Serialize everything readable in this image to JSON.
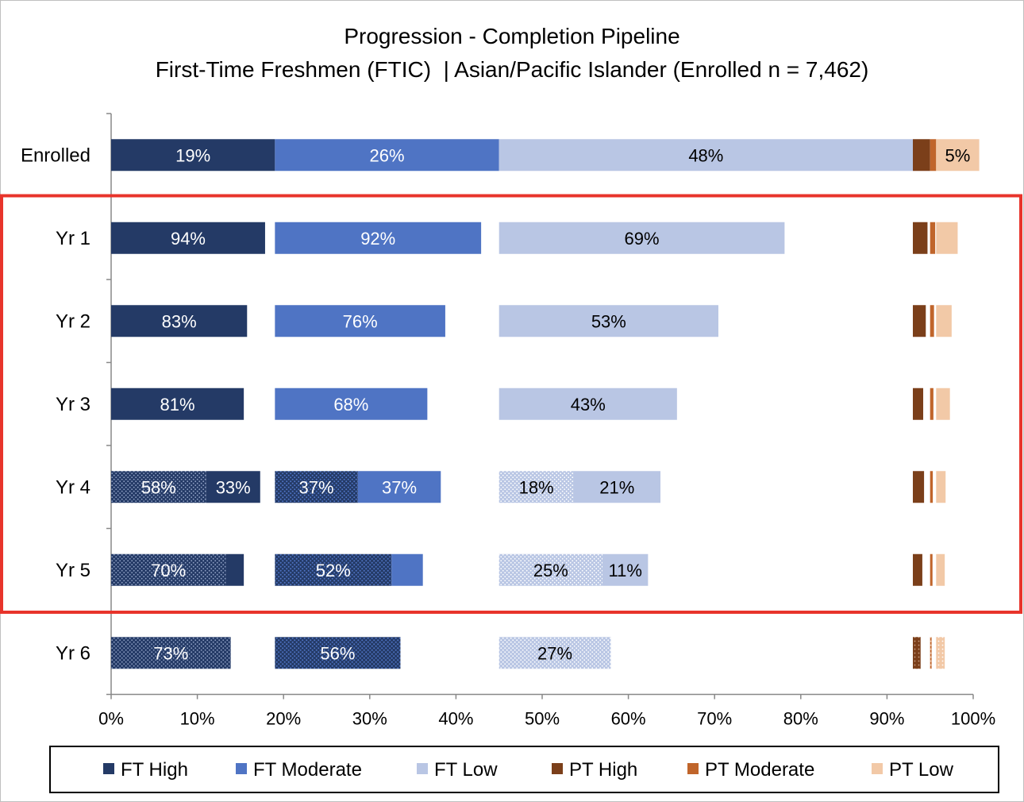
{
  "chart_data": {
    "type": "bar",
    "orientation": "horizontal",
    "stacking": "grouped-stacked",
    "title": "Progression - Completion Pipeline",
    "subtitle": "First-Time Freshmen (FTIC)  | Asian/Pacific Islander (Enrolled n = 7,462)",
    "categories": [
      "Enrolled",
      "Yr 1",
      "Yr 2",
      "Yr 3",
      "Yr 4",
      "Yr 5",
      "Yr 6"
    ],
    "xlim": [
      0,
      100
    ],
    "x_ticks": [
      "0%",
      "10%",
      "20%",
      "30%",
      "40%",
      "50%",
      "60%",
      "70%",
      "80%",
      "90%",
      "100%"
    ],
    "legend_position": "bottom",
    "highlight_box": {
      "color": "#e8342b",
      "categories": [
        "Yr 1",
        "Yr 2",
        "Yr 3",
        "Yr 4",
        "Yr 5"
      ]
    },
    "series": [
      {
        "name": "FT High",
        "color": "#243a66",
        "share_of_enrolled": 19
      },
      {
        "name": "FT Moderate",
        "color": "#4f74c4",
        "share_of_enrolled": 26
      },
      {
        "name": "FT Low",
        "color": "#b9c6e4",
        "share_of_enrolled": 48
      },
      {
        "name": "PT High",
        "color": "#7b3f1a",
        "share_of_enrolled": 2
      },
      {
        "name": "PT Moderate",
        "color": "#c0652b",
        "share_of_enrolled": 0.7
      },
      {
        "name": "PT Low",
        "color": "#f2c9a7",
        "share_of_enrolled": 5
      }
    ],
    "enrolled_labels": [
      "19%",
      "26%",
      "48%",
      "",
      "",
      "5%"
    ],
    "progress": [
      {
        "category": "Yr 1",
        "groups": [
          {
            "series": "FT High",
            "completed": 0,
            "retained": 94,
            "completed_label": "",
            "retained_label": "94%"
          },
          {
            "series": "FT Moderate",
            "completed": 0,
            "retained": 92,
            "completed_label": "",
            "retained_label": "92%"
          },
          {
            "series": "FT Low",
            "completed": 0,
            "retained": 69,
            "completed_label": "",
            "retained_label": "69%"
          },
          {
            "series": "PT High",
            "completed": 0,
            "retained": 85
          },
          {
            "series": "PT Moderate",
            "completed": 0,
            "retained": 85
          },
          {
            "series": "PT Low",
            "completed": 0,
            "retained": 50
          }
        ]
      },
      {
        "category": "Yr 2",
        "groups": [
          {
            "series": "FT High",
            "completed": 0,
            "retained": 83,
            "completed_label": "",
            "retained_label": "83%"
          },
          {
            "series": "FT Moderate",
            "completed": 0,
            "retained": 76,
            "completed_label": "",
            "retained_label": "76%"
          },
          {
            "series": "FT Low",
            "completed": 0,
            "retained": 53,
            "completed_label": "",
            "retained_label": "53%"
          },
          {
            "series": "PT High",
            "completed": 0,
            "retained": 75
          },
          {
            "series": "PT Moderate",
            "completed": 0,
            "retained": 65
          },
          {
            "series": "PT Low",
            "completed": 0,
            "retained": 36
          }
        ]
      },
      {
        "category": "Yr 3",
        "groups": [
          {
            "series": "FT High",
            "completed": 0,
            "retained": 81,
            "completed_label": "",
            "retained_label": "81%"
          },
          {
            "series": "FT Moderate",
            "completed": 0,
            "retained": 68,
            "completed_label": "",
            "retained_label": "68%"
          },
          {
            "series": "FT Low",
            "completed": 0,
            "retained": 43,
            "completed_label": "",
            "retained_label": "43%"
          },
          {
            "series": "PT High",
            "completed": 0,
            "retained": 60
          },
          {
            "series": "PT Moderate",
            "completed": 0,
            "retained": 55
          },
          {
            "series": "PT Low",
            "completed": 0,
            "retained": 32
          }
        ]
      },
      {
        "category": "Yr 4",
        "groups": [
          {
            "series": "FT High",
            "completed": 58,
            "retained": 33,
            "completed_label": "58%",
            "retained_label": "33%"
          },
          {
            "series": "FT Moderate",
            "completed": 37,
            "retained": 37,
            "completed_label": "37%",
            "retained_label": "37%"
          },
          {
            "series": "FT Low",
            "completed": 18,
            "retained": 21,
            "completed_label": "18%",
            "retained_label": "21%"
          },
          {
            "series": "PT High",
            "completed": 0,
            "retained": 65
          },
          {
            "series": "PT Moderate",
            "completed": 0,
            "retained": 45
          },
          {
            "series": "PT Low",
            "completed": 0,
            "retained": 22
          }
        ]
      },
      {
        "category": "Yr 5",
        "groups": [
          {
            "series": "FT High",
            "completed": 70,
            "retained": 11,
            "completed_label": "70%",
            "retained_label": ""
          },
          {
            "series": "FT Moderate",
            "completed": 52,
            "retained": 14,
            "completed_label": "52%",
            "retained_label": ""
          },
          {
            "series": "FT Low",
            "completed": 25,
            "retained": 11,
            "completed_label": "25%",
            "retained_label": "11%"
          },
          {
            "series": "PT High",
            "completed": 0,
            "retained": 55
          },
          {
            "series": "PT Moderate",
            "completed": 0,
            "retained": 40
          },
          {
            "series": "PT Low",
            "completed": 0,
            "retained": 20
          }
        ]
      },
      {
        "category": "Yr 6",
        "groups": [
          {
            "series": "FT High",
            "completed": 73,
            "retained": 0,
            "completed_label": "73%",
            "retained_label": ""
          },
          {
            "series": "FT Moderate",
            "completed": 56,
            "retained": 0,
            "completed_label": "56%",
            "retained_label": ""
          },
          {
            "series": "FT Low",
            "completed": 27,
            "retained": 0,
            "completed_label": "27%",
            "retained_label": ""
          },
          {
            "series": "PT High",
            "completed": 45,
            "retained": 0
          },
          {
            "series": "PT Moderate",
            "completed": 25,
            "retained": 0
          },
          {
            "series": "PT Low",
            "completed": 20,
            "retained": 0
          }
        ]
      }
    ]
  }
}
